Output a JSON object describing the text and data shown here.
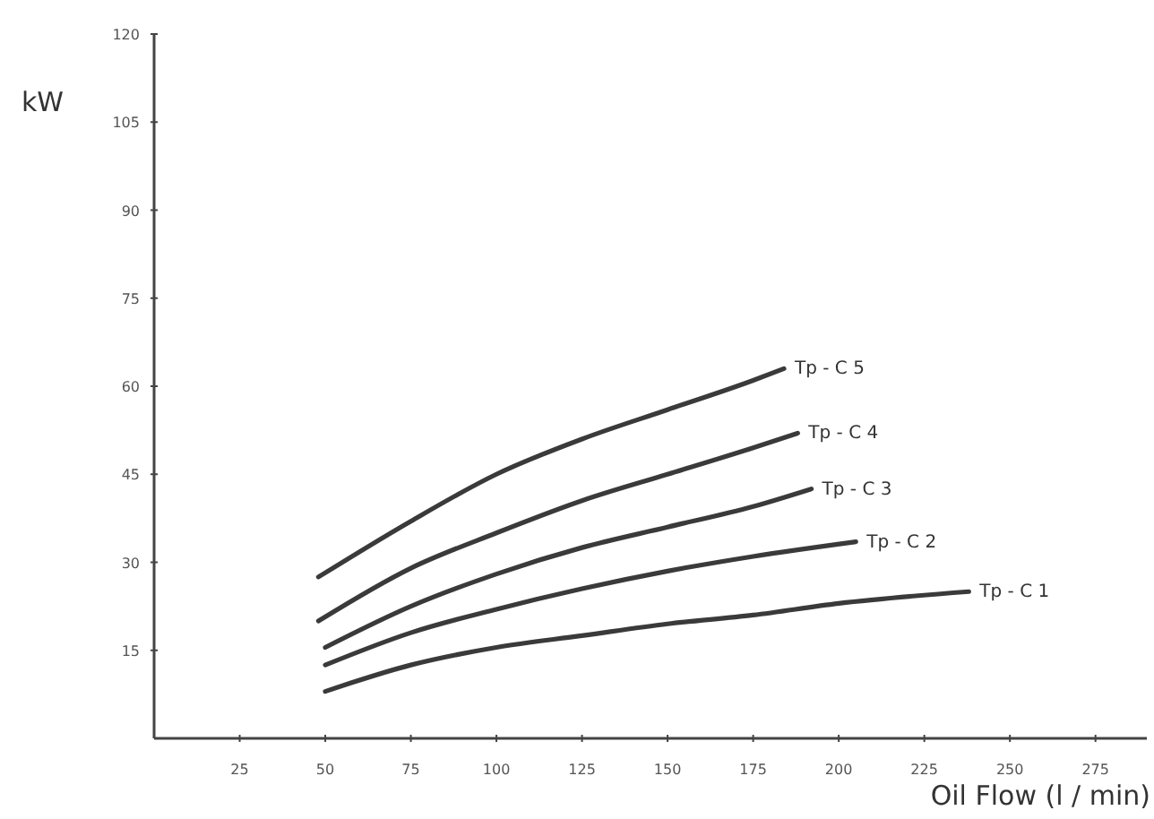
{
  "chart_data": {
    "type": "line",
    "xlabel": "Oil Flow (l / min)",
    "ylabel": "kW",
    "xlim": [
      0,
      290
    ],
    "ylim": [
      0,
      120
    ],
    "xticks": [
      25,
      50,
      75,
      100,
      125,
      150,
      175,
      200,
      225,
      250,
      275
    ],
    "yticks": [
      15,
      30,
      45,
      60,
      75,
      90,
      105,
      120
    ],
    "grid": false,
    "legend": false,
    "marker": "none",
    "line_style": "solid",
    "series": [
      {
        "name": "Tp - C 5",
        "color": "#3a3a3a",
        "x": [
          48,
          75,
          100,
          125,
          150,
          175,
          184
        ],
        "values": [
          27.5,
          37,
          45,
          51,
          56,
          61,
          63
        ]
      },
      {
        "name": "Tp - C 4",
        "color": "#3a3a3a",
        "x": [
          48,
          75,
          100,
          125,
          150,
          175,
          188
        ],
        "values": [
          20,
          29,
          35,
          40.5,
          45,
          49.5,
          52
        ]
      },
      {
        "name": "Tp - C 3",
        "color": "#3a3a3a",
        "x": [
          50,
          75,
          100,
          125,
          150,
          175,
          192
        ],
        "values": [
          15.5,
          22.5,
          28,
          32.5,
          36,
          39.5,
          42.5
        ]
      },
      {
        "name": "Tp - C 2",
        "color": "#3a3a3a",
        "x": [
          50,
          75,
          100,
          125,
          150,
          175,
          205
        ],
        "values": [
          12.5,
          18,
          22,
          25.5,
          28.5,
          31,
          33.5
        ]
      },
      {
        "name": "Tp - C 1",
        "color": "#3a3a3a",
        "x": [
          50,
          75,
          100,
          125,
          150,
          175,
          200,
          238
        ],
        "values": [
          8,
          12.5,
          15.5,
          17.5,
          19.5,
          21,
          23,
          25
        ]
      }
    ]
  }
}
